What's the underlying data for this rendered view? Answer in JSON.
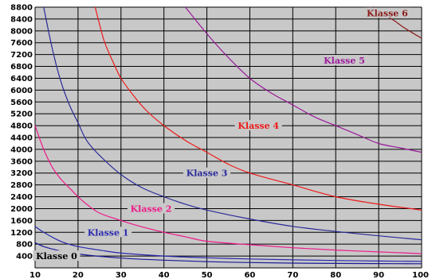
{
  "chart_data": {
    "type": "line",
    "title": "",
    "xlabel": "",
    "ylabel": "",
    "xlim": [
      10,
      100
    ],
    "ylim": [
      0,
      8800
    ],
    "x_ticks": [
      10,
      20,
      30,
      40,
      50,
      60,
      70,
      80,
      90,
      100
    ],
    "y_ticks": [
      400,
      800,
      1200,
      1600,
      2000,
      2400,
      2800,
      3200,
      3600,
      4000,
      4400,
      4800,
      5200,
      5600,
      6000,
      6400,
      6800,
      7200,
      7600,
      8000,
      8400,
      8800
    ],
    "y_tick_labels": [
      "400",
      "800",
      "1200",
      "1600",
      "2000",
      "2400",
      "2800",
      "3200",
      "3600",
      "4000",
      "4400",
      "4800",
      "5200",
      "5600",
      "6000",
      "6400",
      "6800",
      "7200",
      "7600",
      "8000",
      "8400",
      "8800"
    ],
    "grid": true,
    "background_color": "#c8c8c8",
    "grid_color": "#000000",
    "series": [
      {
        "name": "Klasse 0",
        "color": "#1a1a9a",
        "label_at": [
          15,
          400
        ],
        "points": [
          [
            10,
            850
          ],
          [
            12,
            720
          ],
          [
            15,
            600
          ],
          [
            20,
            470
          ],
          [
            30,
            330
          ],
          [
            40,
            260
          ],
          [
            50,
            210
          ],
          [
            60,
            180
          ],
          [
            70,
            160
          ],
          [
            80,
            150
          ],
          [
            90,
            145
          ],
          [
            100,
            140
          ]
        ]
      },
      {
        "name": "Klasse 1",
        "color": "#2a2ab0",
        "label_at": [
          27,
          1200
        ],
        "points": [
          [
            10,
            1400
          ],
          [
            12,
            1200
          ],
          [
            15,
            960
          ],
          [
            17,
            840
          ],
          [
            20,
            720
          ],
          [
            25,
            600
          ],
          [
            30,
            500
          ],
          [
            40,
            400
          ],
          [
            50,
            340
          ],
          [
            60,
            300
          ],
          [
            70,
            270
          ],
          [
            80,
            250
          ],
          [
            90,
            230
          ],
          [
            100,
            220
          ]
        ]
      },
      {
        "name": "Klasse 2",
        "color": "#ee1a8a",
        "label_at": [
          37,
          2000
        ],
        "points": [
          [
            10,
            4800
          ],
          [
            12,
            4000
          ],
          [
            14,
            3400
          ],
          [
            16,
            3000
          ],
          [
            18,
            2700
          ],
          [
            20,
            2400
          ],
          [
            22,
            2150
          ],
          [
            25,
            1850
          ],
          [
            30,
            1600
          ],
          [
            35,
            1380
          ],
          [
            40,
            1200
          ],
          [
            45,
            1050
          ],
          [
            50,
            900
          ],
          [
            60,
            780
          ],
          [
            70,
            680
          ],
          [
            80,
            600
          ],
          [
            90,
            540
          ],
          [
            100,
            480
          ]
        ]
      },
      {
        "name": "Klasse 3",
        "color": "#2a2a9a",
        "label_at": [
          50,
          3200
        ],
        "points": [
          [
            12,
            8800
          ],
          [
            14,
            7400
          ],
          [
            16,
            6300
          ],
          [
            18,
            5500
          ],
          [
            20,
            4900
          ],
          [
            22,
            4300
          ],
          [
            25,
            3800
          ],
          [
            30,
            3150
          ],
          [
            35,
            2700
          ],
          [
            40,
            2400
          ],
          [
            45,
            2150
          ],
          [
            50,
            1950
          ],
          [
            60,
            1650
          ],
          [
            70,
            1400
          ],
          [
            80,
            1230
          ],
          [
            90,
            1080
          ],
          [
            100,
            950
          ]
        ]
      },
      {
        "name": "Klasse 4",
        "color": "#ee1a1a",
        "label_at": [
          62,
          4800
        ],
        "points": [
          [
            24,
            8800
          ],
          [
            26,
            7700
          ],
          [
            28,
            7000
          ],
          [
            30,
            6400
          ],
          [
            33,
            5800
          ],
          [
            36,
            5300
          ],
          [
            40,
            4800
          ],
          [
            45,
            4300
          ],
          [
            50,
            3900
          ],
          [
            55,
            3500
          ],
          [
            60,
            3200
          ],
          [
            70,
            2800
          ],
          [
            80,
            2400
          ],
          [
            90,
            2150
          ],
          [
            100,
            1950
          ]
        ]
      },
      {
        "name": "Klasse 5",
        "color": "#9a1a9a",
        "label_at": [
          82,
          7000
        ],
        "points": [
          [
            45,
            8800
          ],
          [
            50,
            7900
          ],
          [
            55,
            7100
          ],
          [
            60,
            6400
          ],
          [
            65,
            5900
          ],
          [
            70,
            5500
          ],
          [
            75,
            5100
          ],
          [
            80,
            4800
          ],
          [
            85,
            4500
          ],
          [
            90,
            4200
          ],
          [
            95,
            4050
          ],
          [
            100,
            3900
          ]
        ]
      },
      {
        "name": "Klasse 6",
        "color": "#8a1a1a",
        "label_at": [
          92,
          8600
        ],
        "points": [
          [
            88,
            8800
          ],
          [
            90,
            8600
          ],
          [
            93,
            8400
          ],
          [
            96,
            8100
          ],
          [
            100,
            7750
          ]
        ]
      }
    ]
  }
}
